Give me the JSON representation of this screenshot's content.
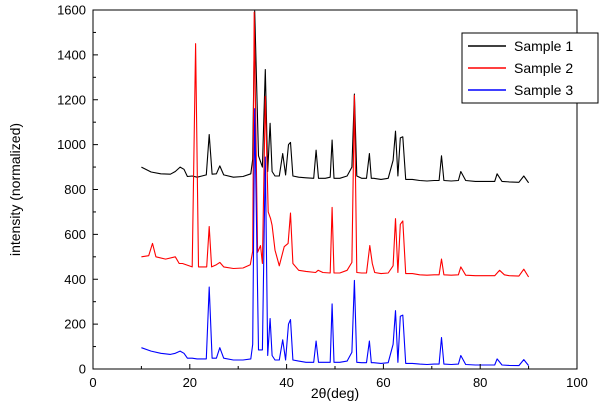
{
  "chart_data": {
    "type": "line",
    "title": "",
    "xlabel": "2θ(deg)",
    "ylabel": "intensity (normalized)",
    "xlim": [
      0,
      100
    ],
    "ylim": [
      0,
      1600
    ],
    "x_ticks": [
      0,
      20,
      40,
      60,
      80,
      100
    ],
    "y_ticks": [
      0,
      200,
      400,
      600,
      800,
      1000,
      1200,
      1400,
      1600
    ],
    "grid": false,
    "legend_position": "top-right",
    "series": [
      {
        "name": "Sample 1",
        "color": "#000000",
        "x": [
          10,
          12,
          14,
          16,
          17,
          18,
          18.8,
          19.5,
          20.5,
          21.5,
          22.5,
          23.4,
          24,
          24.6,
          25.5,
          26.2,
          27,
          29,
          31,
          32.6,
          33,
          33.4,
          34.2,
          35,
          35.6,
          36.1,
          36.6,
          37,
          37.6,
          38.5,
          39.2,
          39.8,
          40.4,
          40.8,
          41.3,
          42.5,
          44,
          45.6,
          46.1,
          46.6,
          48,
          49,
          49.4,
          49.8,
          51,
          52.5,
          53.5,
          54,
          54.5,
          55.5,
          56.5,
          57.1,
          57.5,
          58,
          59.5,
          61,
          62,
          62.5,
          63,
          63.5,
          64,
          64.6,
          66,
          67.5,
          69,
          70.5,
          71.5,
          72,
          72.5,
          74,
          75.5,
          76,
          77,
          79,
          80.5,
          81.5,
          83,
          83.5,
          84.5,
          86,
          88,
          89,
          90
        ],
        "y": [
          900,
          878,
          870,
          868,
          880,
          900,
          890,
          858,
          860,
          855,
          860,
          865,
          1045,
          868,
          870,
          905,
          865,
          855,
          858,
          870,
          935,
          1595,
          950,
          900,
          1335,
          880,
          1095,
          880,
          860,
          860,
          960,
          865,
          1000,
          1010,
          860,
          855,
          852,
          850,
          975,
          850,
          850,
          855,
          1020,
          850,
          850,
          860,
          900,
          1225,
          860,
          850,
          850,
          960,
          850,
          850,
          845,
          850,
          930,
          1060,
          860,
          1030,
          1035,
          845,
          845,
          840,
          838,
          840,
          840,
          950,
          840,
          838,
          840,
          880,
          840,
          836,
          836,
          836,
          836,
          870,
          836,
          834,
          832,
          860,
          830
        ]
      },
      {
        "name": "Sample 2",
        "color": "#ff0000",
        "x": [
          10,
          11.5,
          12.3,
          13,
          15,
          17,
          17.8,
          18.5,
          20.5,
          21.2,
          21.8,
          22.5,
          23.5,
          24,
          24.5,
          25.5,
          26.2,
          27,
          29,
          31,
          32.5,
          33,
          33.3,
          34,
          34.6,
          35,
          35.6,
          36.2,
          36.7,
          37,
          37.6,
          38.5,
          39.5,
          40.3,
          40.8,
          41.3,
          42.5,
          44,
          46,
          46.5,
          47.5,
          49,
          49.4,
          49.8,
          51,
          52.5,
          53.5,
          54,
          54.5,
          55.5,
          56.5,
          57.2,
          57.7,
          58.2,
          59.5,
          61,
          62,
          62.5,
          63,
          63.5,
          64,
          64.6,
          66,
          67.5,
          69,
          70.5,
          71.5,
          72,
          72.5,
          74,
          75.5,
          76,
          77,
          79,
          80.5,
          81.5,
          83,
          84,
          85,
          86,
          88,
          89,
          90
        ],
        "y": [
          500,
          505,
          560,
          500,
          490,
          500,
          470,
          470,
          455,
          1450,
          455,
          455,
          455,
          635,
          455,
          465,
          475,
          455,
          448,
          450,
          465,
          525,
          1590,
          520,
          550,
          470,
          1215,
          700,
          670,
          640,
          530,
          460,
          545,
          560,
          695,
          470,
          440,
          435,
          430,
          440,
          430,
          428,
          720,
          428,
          428,
          440,
          475,
          1220,
          430,
          428,
          428,
          550,
          470,
          430,
          425,
          428,
          460,
          670,
          430,
          645,
          660,
          425,
          425,
          420,
          418,
          420,
          420,
          490,
          420,
          418,
          420,
          455,
          418,
          416,
          416,
          416,
          416,
          440,
          420,
          416,
          414,
          445,
          410
        ]
      },
      {
        "name": "Sample 3",
        "color": "#0000ff",
        "x": [
          10,
          12,
          14,
          16,
          17,
          18,
          18.8,
          19.5,
          20.5,
          21.5,
          22.5,
          23.4,
          24,
          24.6,
          25.5,
          26.2,
          27,
          29,
          31,
          32.6,
          33,
          33.4,
          34.2,
          35,
          35.6,
          36.1,
          36.6,
          37,
          37.6,
          38.5,
          39.2,
          39.8,
          40.4,
          40.8,
          41.3,
          42.5,
          44,
          45.6,
          46.1,
          46.6,
          48,
          49,
          49.4,
          49.8,
          51,
          52.5,
          53.5,
          54,
          54.5,
          55.5,
          56.5,
          57.1,
          57.5,
          58,
          59.5,
          61,
          62,
          62.5,
          63,
          63.5,
          64,
          64.6,
          66,
          67.5,
          69,
          70.5,
          71.5,
          72,
          72.5,
          74,
          75.5,
          76,
          77,
          79,
          80.5,
          81.5,
          83,
          83.5,
          84.5,
          86,
          88,
          89,
          90
        ],
        "y": [
          95,
          80,
          70,
          65,
          70,
          80,
          70,
          48,
          48,
          45,
          45,
          45,
          365,
          48,
          48,
          95,
          48,
          40,
          40,
          45,
          110,
          1160,
          85,
          85,
          945,
          60,
          225,
          60,
          40,
          40,
          130,
          40,
          200,
          220,
          40,
          35,
          30,
          30,
          125,
          30,
          30,
          30,
          290,
          30,
          30,
          35,
          75,
          395,
          30,
          28,
          28,
          125,
          28,
          28,
          25,
          28,
          110,
          260,
          30,
          235,
          240,
          25,
          25,
          22,
          20,
          22,
          22,
          140,
          22,
          20,
          22,
          60,
          20,
          18,
          18,
          18,
          18,
          45,
          18,
          16,
          15,
          42,
          15
        ]
      }
    ]
  }
}
